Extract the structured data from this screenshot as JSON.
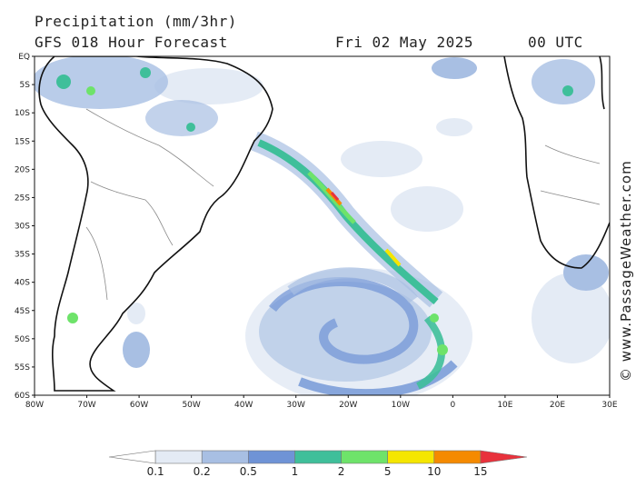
{
  "header": {
    "title": "Precipitation (mm/3hr)",
    "subtitle": "GFS 018 Hour Forecast",
    "date": "Fri 02 May 2025",
    "time": "00 UTC"
  },
  "credit": "© www.PassageWeather.com",
  "map": {
    "lon_range": [
      -80,
      30
    ],
    "lat_range": [
      0,
      -60
    ],
    "lat_labels": [
      "EQ",
      "5S",
      "10S",
      "15S",
      "20S",
      "25S",
      "30S",
      "35S",
      "40S",
      "45S",
      "50S",
      "55S",
      "60S"
    ],
    "lon_labels": [
      "80W",
      "70W",
      "60W",
      "50W",
      "40W",
      "30W",
      "20W",
      "10W",
      "0",
      "10E",
      "20E",
      "30E"
    ]
  },
  "legend": {
    "ticks": [
      "0.1",
      "0.2",
      "0.5",
      "1",
      "2",
      "5",
      "10",
      "15"
    ],
    "colors": [
      "#ffffff",
      "#e4ebf5",
      "#a8bfe3",
      "#6f93d6",
      "#3fbf9a",
      "#6ee36a",
      "#f5e600",
      "#f58a00",
      "#e8323c"
    ]
  }
}
